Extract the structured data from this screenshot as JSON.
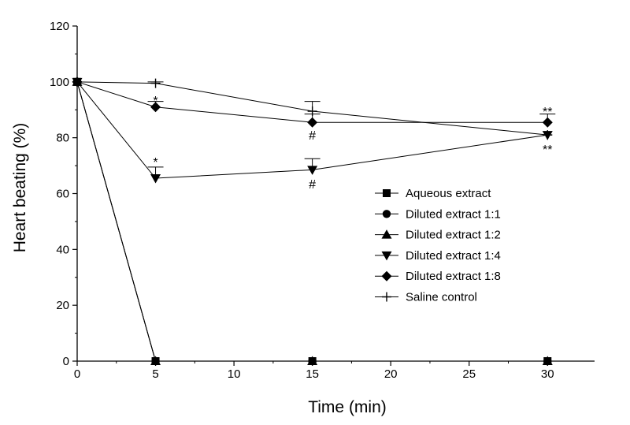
{
  "chart_data": {
    "type": "line",
    "xlabel": "Time (min)",
    "ylabel": "Heart beating (%)",
    "xlim": [
      0,
      33
    ],
    "ylim": [
      0,
      120
    ],
    "x_ticks": [
      0,
      5,
      10,
      15,
      20,
      25,
      30
    ],
    "y_ticks": [
      0,
      20,
      40,
      60,
      80,
      100,
      120
    ],
    "x_tick_labels": [
      "0",
      "5",
      "10",
      "15",
      "20",
      "25",
      "30"
    ],
    "y_tick_labels": [
      "0",
      "20",
      "40",
      "60",
      "80",
      "100",
      "120"
    ],
    "grid": false,
    "legend_position": "center-right",
    "x": [
      0,
      5,
      15,
      30
    ],
    "series": [
      {
        "name": "Aqueous extract",
        "marker": "square",
        "values": [
          100,
          0,
          0,
          0
        ],
        "errors": [
          0,
          0,
          0,
          0
        ]
      },
      {
        "name": "Diluted extract 1:1",
        "marker": "circle",
        "values": [
          100,
          0,
          0,
          0
        ],
        "errors": [
          0,
          0,
          0,
          0
        ]
      },
      {
        "name": "Diluted extract 1:2",
        "marker": "triangle-up",
        "values": [
          100,
          0,
          0,
          0
        ],
        "errors": [
          0,
          0,
          0,
          0
        ]
      },
      {
        "name": "Diluted extract 1:4",
        "marker": "triangle-down",
        "values": [
          100,
          65.5,
          68.5,
          81
        ],
        "errors": [
          0,
          4,
          4,
          0
        ]
      },
      {
        "name": "Diluted extract 1:8",
        "marker": "diamond",
        "values": [
          100,
          91,
          85.5,
          85.5
        ],
        "errors": [
          0,
          2,
          3,
          3
        ]
      },
      {
        "name": "Saline control",
        "marker": "plus",
        "values": [
          100,
          99.5,
          89.5,
          81
        ],
        "errors": [
          0,
          0.5,
          3.5,
          0
        ]
      }
    ],
    "annotations": [
      {
        "text": "*",
        "x": 5,
        "y": 93.5
      },
      {
        "text": "*",
        "x": 5,
        "y": 71.5
      },
      {
        "text": "#",
        "x": 15,
        "y": 81
      },
      {
        "text": "#",
        "x": 15,
        "y": 63.5
      },
      {
        "text": "**",
        "x": 30,
        "y": 89.5
      },
      {
        "text": "**",
        "x": 30,
        "y": 76
      }
    ]
  }
}
